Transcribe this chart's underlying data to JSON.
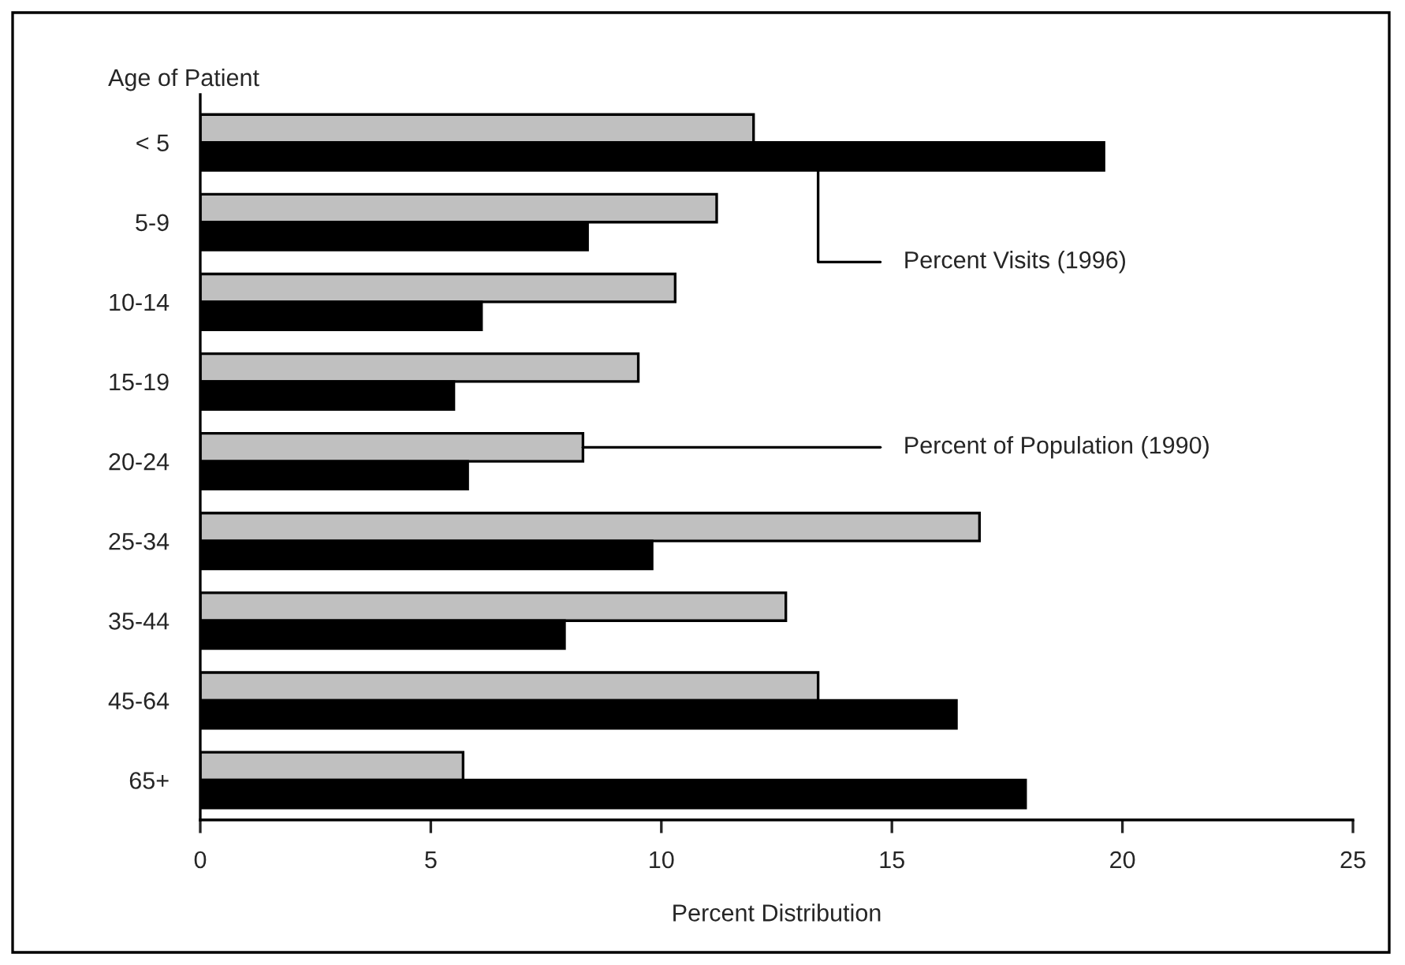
{
  "chart_data": {
    "type": "bar",
    "orientation": "horizontal",
    "xlabel": "Percent Distribution",
    "ylabel": "Age of Patient",
    "categories": [
      "< 5",
      "5-9",
      "10-14",
      "15-19",
      "20-24",
      "25-34",
      "35-44",
      "45-64",
      "65+"
    ],
    "series": [
      {
        "name": "Percent of Population (1990)",
        "color": "#c0c0c0",
        "values": [
          12.0,
          11.2,
          10.3,
          9.5,
          8.3,
          16.9,
          12.7,
          13.4,
          5.7
        ]
      },
      {
        "name": "Percent Visits (1996)",
        "color": "#000000",
        "values": [
          19.6,
          8.4,
          6.1,
          5.5,
          5.8,
          9.8,
          7.9,
          16.4,
          17.9
        ]
      }
    ],
    "xlim": [
      0,
      25
    ],
    "xticks": [
      0,
      5,
      10,
      15,
      20,
      25
    ]
  }
}
